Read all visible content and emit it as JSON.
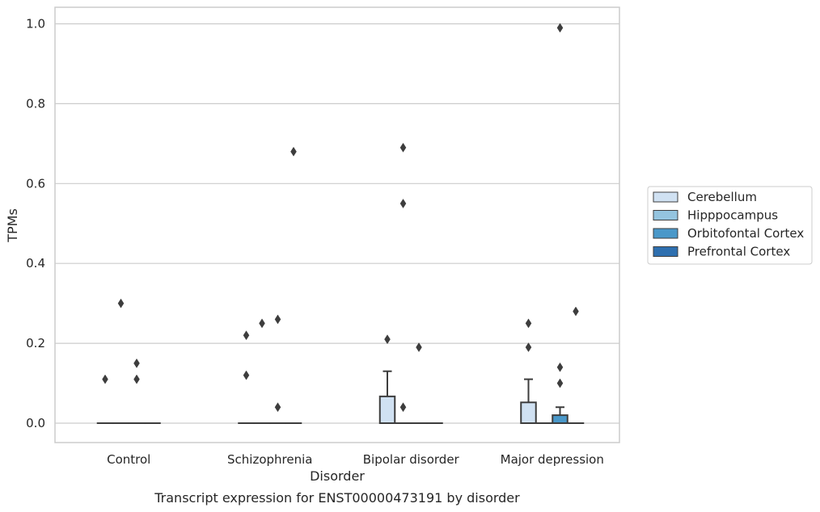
{
  "caption": "Transcript expression for ENST00000473191 by disorder",
  "colors": {
    "Cerebellum": "#d0e1f2",
    "Hipppocampus": "#94c4df",
    "Orbitofontal Cortex": "#4a98c9",
    "Prefrontal Cortex": "#2e6faf",
    "line": "#3d3d3d",
    "grid": "#cccccc"
  },
  "chart_data": {
    "type": "box",
    "xlabel": "Disorder",
    "ylabel": "TPMs",
    "categories": [
      "Control",
      "Schizophrenia",
      "Bipolar disorder",
      "Major depression"
    ],
    "ylim": [
      -0.05,
      1.04
    ],
    "yticks": [
      0.0,
      0.2,
      0.4,
      0.6,
      0.8,
      1.0
    ],
    "ytick_labels": [
      "0.0",
      "0.2",
      "0.4",
      "0.6",
      "0.8",
      "1.0"
    ],
    "grid": true,
    "legend_position": "right",
    "series": [
      {
        "name": "Cerebellum",
        "boxes": [
          {
            "q1": 0,
            "median": 0,
            "q3": 0,
            "whisker_high": 0,
            "outliers": [
              0.11
            ]
          },
          {
            "q1": 0,
            "median": 0,
            "q3": 0,
            "whisker_high": 0,
            "outliers": [
              0.22,
              0.12
            ]
          },
          {
            "q1": 0,
            "median": 0,
            "q3": 0.067,
            "whisker_high": 0.13,
            "outliers": [
              0.21
            ]
          },
          {
            "q1": 0,
            "median": 0,
            "q3": 0.052,
            "whisker_high": 0.11,
            "outliers": [
              0.25,
              0.19
            ]
          }
        ]
      },
      {
        "name": "Hipppocampus",
        "boxes": [
          {
            "q1": 0,
            "median": 0,
            "q3": 0,
            "whisker_high": 0,
            "outliers": [
              0.3
            ]
          },
          {
            "q1": 0,
            "median": 0,
            "q3": 0,
            "whisker_high": 0,
            "outliers": [
              0.25
            ]
          },
          {
            "q1": 0,
            "median": 0,
            "q3": 0,
            "whisker_high": 0,
            "outliers": [
              0.69,
              0.55,
              0.04
            ]
          },
          {
            "q1": 0,
            "median": 0,
            "q3": 0,
            "whisker_high": 0,
            "outliers": []
          }
        ]
      },
      {
        "name": "Orbitofontal Cortex",
        "boxes": [
          {
            "q1": 0,
            "median": 0,
            "q3": 0,
            "whisker_high": 0,
            "outliers": [
              0.15,
              0.11
            ]
          },
          {
            "q1": 0,
            "median": 0,
            "q3": 0,
            "whisker_high": 0,
            "outliers": [
              0.26,
              0.04
            ]
          },
          {
            "q1": 0,
            "median": 0,
            "q3": 0,
            "whisker_high": 0,
            "outliers": [
              0.19
            ]
          },
          {
            "q1": 0,
            "median": 0,
            "q3": 0.02,
            "whisker_high": 0.04,
            "outliers": [
              0.99,
              0.14,
              0.1
            ]
          }
        ]
      },
      {
        "name": "Prefrontal Cortex",
        "boxes": [
          {
            "q1": 0,
            "median": 0,
            "q3": 0,
            "whisker_high": 0,
            "outliers": []
          },
          {
            "q1": 0,
            "median": 0,
            "q3": 0,
            "whisker_high": 0,
            "outliers": [
              0.68
            ]
          },
          {
            "q1": 0,
            "median": 0,
            "q3": 0,
            "whisker_high": 0,
            "outliers": []
          },
          {
            "q1": 0,
            "median": 0,
            "q3": 0,
            "whisker_high": 0,
            "outliers": [
              0.28
            ]
          }
        ]
      }
    ]
  }
}
